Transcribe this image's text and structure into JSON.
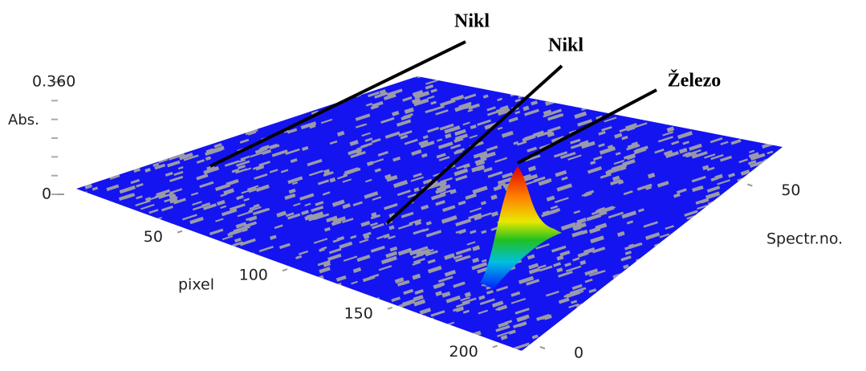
{
  "chart_data": {
    "type": "surface3d",
    "x_label": "pixel",
    "y_label": "Spectr.no.",
    "z_label": "Abs.",
    "xlim": [
      0,
      210
    ],
    "xticks": [
      50,
      100,
      150,
      200
    ],
    "ylim": [
      0,
      60
    ],
    "yticks": [
      0,
      50
    ],
    "zlim": [
      0,
      0.36
    ],
    "zticks": [
      0,
      {
        "value": 0.36,
        "label": "0.360"
      }
    ],
    "annotations": [
      "Nikl",
      "Nikl",
      "Železo"
    ]
  }
}
